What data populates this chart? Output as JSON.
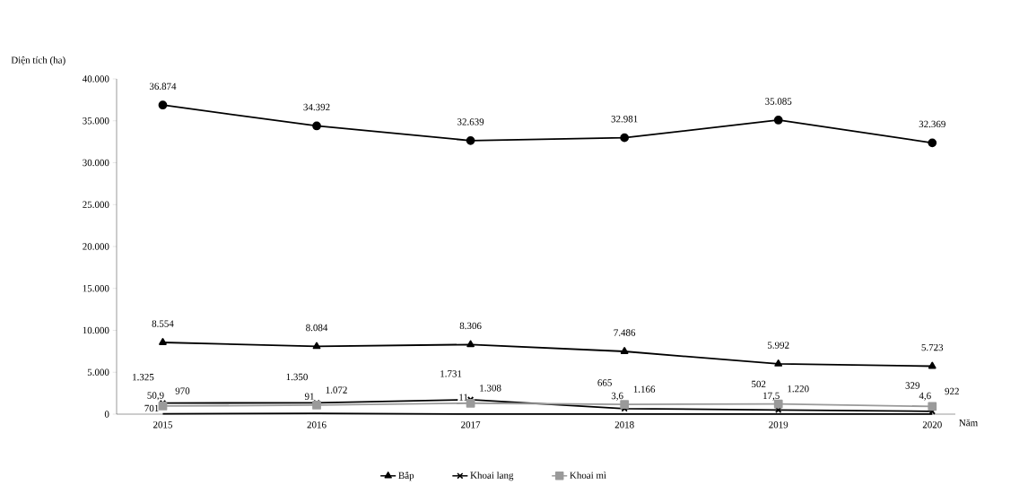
{
  "chart_data": {
    "type": "line",
    "ylabel": "Diện tích (ha)",
    "xlabel": "Năm",
    "categories": [
      "2015",
      "2016",
      "2017",
      "2018",
      "2019",
      "2020"
    ],
    "ylim": [
      0,
      40000
    ],
    "yticks": [
      {
        "value": 0,
        "label": "0"
      },
      {
        "value": 5000,
        "label": "5.000"
      },
      {
        "value": 10000,
        "label": "10.000"
      },
      {
        "value": 15000,
        "label": "15.000"
      },
      {
        "value": 20000,
        "label": "20.000"
      },
      {
        "value": 25000,
        "label": "25.000"
      },
      {
        "value": 30000,
        "label": "30.000"
      },
      {
        "value": 35000,
        "label": "35.000"
      },
      {
        "value": 40000,
        "label": "40.000"
      }
    ],
    "legend": "bottom",
    "grid": false,
    "series": [
      {
        "color": "#000000",
        "marker": "circle",
        "values": [
          36874,
          34392,
          32639,
          32981,
          35085,
          32369
        ],
        "value_labels": [
          "36.874",
          "34.392",
          "32.639",
          "32.981",
          "35.085",
          "32.369"
        ]
      },
      {
        "name": "Bắp",
        "color": "#000000",
        "marker": "triangle",
        "values": [
          8554,
          8084,
          8306,
          7486,
          5992,
          5723
        ],
        "value_labels": [
          "8.554",
          "8.084",
          "8.306",
          "7.486",
          "5.992",
          "5.723"
        ]
      },
      {
        "name": "Khoai lang",
        "color": "#000000",
        "marker": "cross",
        "values": [
          1325,
          1350,
          1731,
          665,
          502,
          329
        ],
        "value_labels": [
          "1.325",
          "1.350",
          "1.731",
          "665",
          "502",
          "329"
        ]
      },
      {
        "name": "Khoai mì",
        "color": "#9a9a9a",
        "marker": "square",
        "values": [
          970,
          1072,
          1308,
          1166,
          1220,
          922
        ],
        "value_labels": [
          "970",
          "1.072",
          "1.308",
          "1.166",
          "1.220",
          "922"
        ]
      },
      {
        "color": "#000000",
        "marker": "none",
        "values": [
          50.9,
          91,
          11,
          3.6,
          17.5,
          4.6
        ],
        "value_labels": [
          "50,9",
          "91",
          "11",
          "3,6",
          "17,5",
          "4,6"
        ]
      }
    ],
    "annotations": [
      {
        "text": "701",
        "x": "2015",
        "y": 701
      }
    ]
  }
}
